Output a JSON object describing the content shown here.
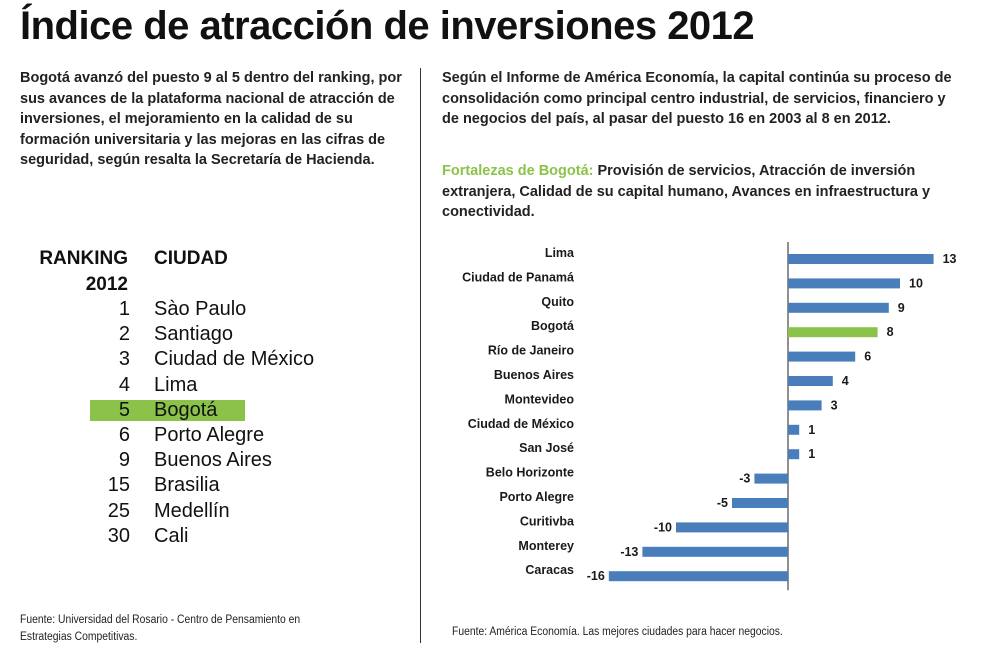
{
  "title": "Índice de atracción de inversiones 2012",
  "lead_paragraph": "Bogotá avanzó del puesto 9 al 5 dentro del ranking, por sus avances de la plataforma nacional de atracción de inversiones, el mejoramiento en la calidad de su formación universitaria y las mejoras en las cifras de seguridad, según resalta la Secretaría de Hacienda.",
  "right_paragraph": "Según el Informe de América Economía, la capital continúa su proceso de consolidación como principal centro industrial, de servicios, financiero y de negocios del país, al pasar del puesto 16 en 2003 al 8 en 2012.",
  "strengths": {
    "label": "Fortalezas de Bogotá:",
    "text": " Provisión de servicios, Atracción de inversión extranjera, Calidad de su capital humano, Avances en infraestructura y conectividad."
  },
  "ranking": {
    "header_rank_line1": "RANKING",
    "header_rank_line2": "2012",
    "header_city": "CIUDAD",
    "rows": [
      {
        "rank": "1",
        "city": "Sào Paulo"
      },
      {
        "rank": "2",
        "city": "Santiago"
      },
      {
        "rank": "3",
        "city": "Ciudad de México"
      },
      {
        "rank": "4",
        "city": "Lima"
      },
      {
        "rank": "5",
        "city": "Bogotá",
        "highlight": true
      },
      {
        "rank": "6",
        "city": "Porto Alegre"
      },
      {
        "rank": "9",
        "city": "Buenos Aires"
      },
      {
        "rank": "15",
        "city": "Brasilia"
      },
      {
        "rank": "25",
        "city": "Medellín"
      },
      {
        "rank": "30",
        "city": "Cali"
      }
    ]
  },
  "source_left": "Fuente: Universidad del Rosario - Centro de Pensamiento en Estrategias Competitivas.",
  "source_right": "Fuente: América Economía. Las mejores ciudades para hacer negocios.",
  "colors": {
    "bar": "#4a7ebb",
    "highlight": "#8bc34a",
    "text": "#1a1a1a"
  },
  "chart_data": {
    "type": "bar",
    "orientation": "horizontal",
    "categories": [
      "Lima",
      "Ciudad de Panamá",
      "Quito",
      "Bogotá",
      "Río de Janeiro",
      "Buenos Aires",
      "Montevideo",
      "Ciudad de México",
      "San José",
      "Belo Horizonte",
      "Porto Alegre",
      "Curitivba",
      "Monterey",
      "Caracas"
    ],
    "values": [
      13,
      10,
      9,
      8,
      6,
      4,
      3,
      1,
      1,
      -3,
      -5,
      -10,
      -13,
      -16
    ],
    "highlight_category": "Bogotá",
    "value_labels": [
      "13",
      "10",
      "9",
      "8",
      "6",
      "4",
      "3",
      "1",
      "1",
      "-3",
      "-5",
      "-10",
      "-13",
      "-16"
    ],
    "xlim": [
      -16,
      13
    ],
    "grid": false,
    "zero_line": true
  }
}
